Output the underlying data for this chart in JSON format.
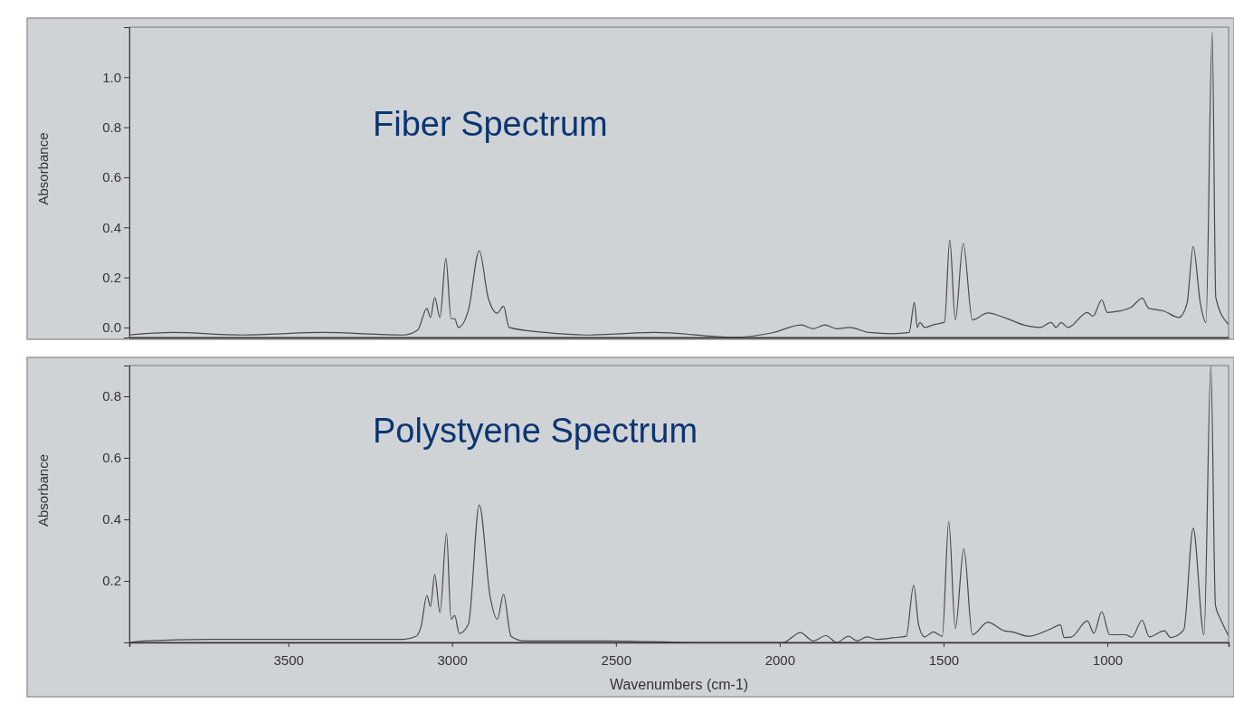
{
  "chart_data": [
    {
      "type": "line",
      "title": "Fiber Spectrum",
      "ylabel": "Absorbance",
      "tick_labels": "y",
      "xlim": [
        3985,
        630
      ],
      "ylim": [
        -0.04,
        1.2
      ],
      "yticks": [
        {
          "value": 0,
          "label": "0.0"
        },
        0.2,
        0.4,
        0.6,
        0.8,
        {
          "value": 1,
          "label": "1.0"
        }
      ],
      "x": [
        3985,
        3851,
        3641,
        3395,
        3149,
        3105,
        3077,
        3066,
        3053,
        3037,
        3019,
        3003,
        2992,
        2981,
        2950,
        2917,
        2890,
        2862,
        2843,
        2826,
        2716,
        2594,
        2503,
        2381,
        2138,
        2019,
        1934,
        1898,
        1862,
        1826,
        1787,
        1727,
        1655,
        1605,
        1589,
        1580,
        1572,
        1558,
        1533,
        1497,
        1481,
        1464,
        1440,
        1412,
        1365,
        1315,
        1255,
        1207,
        1171,
        1157,
        1141,
        1120,
        1061,
        1044,
        1017,
        1000,
        966,
        928,
        893,
        875,
        826,
        782,
        757,
        738,
        716,
        699,
        680,
        669,
        632
      ],
      "series": [
        {
          "color": "#4a4a4a",
          "values": [
            -0.03,
            -0.02,
            -0.03,
            -0.02,
            -0.03,
            -0.01,
            0.076,
            0.04,
            0.12,
            0.04,
            0.277,
            0.035,
            0.035,
            0.0,
            0.07,
            0.307,
            0.12,
            0.057,
            0.085,
            0.0,
            -0.02,
            -0.03,
            -0.026,
            -0.02,
            -0.039,
            -0.02,
            0.01,
            -0.005,
            0.01,
            -0.005,
            0.0,
            -0.02,
            -0.025,
            -0.02,
            0.1,
            0.0,
            0.02,
            0.0,
            0.01,
            0.022,
            0.35,
            0.03,
            0.336,
            0.03,
            0.058,
            0.04,
            0.01,
            0.0,
            0.02,
            0.0,
            0.02,
            0.0,
            0.06,
            0.045,
            0.11,
            0.06,
            0.065,
            0.08,
            0.117,
            0.078,
            0.065,
            0.04,
            0.095,
            0.324,
            0.095,
            0.02,
            1.18,
            0.12,
            0.015
          ]
        }
      ]
    },
    {
      "type": "line",
      "title": "Polystyene Spectrum",
      "ylabel": "Absorbance",
      "xlabel": "Wavenumbers (cm-1)",
      "xlim": [
        3985,
        630
      ],
      "ylim": [
        0,
        0.9
      ],
      "xticks": [
        3500,
        3000,
        2500,
        2000,
        1500,
        1000
      ],
      "yticks": [
        0.2,
        0.4,
        0.6,
        0.8
      ],
      "x": [
        3985,
        3940,
        3740,
        3149,
        3110,
        3094,
        3077,
        3066,
        3053,
        3037,
        3017,
        3003,
        2992,
        2978,
        2950,
        2917,
        2884,
        2862,
        2843,
        2820,
        2779,
        2531,
        2260,
        1989,
        1937,
        1898,
        1859,
        1826,
        1790,
        1763,
        1734,
        1703,
        1655,
        1614,
        1591,
        1576,
        1558,
        1531,
        1504,
        1484,
        1464,
        1438,
        1412,
        1365,
        1315,
        1290,
        1240,
        1171,
        1143,
        1132,
        1111,
        1061,
        1041,
        1017,
        993,
        945,
        925,
        894,
        872,
        826,
        807,
        767,
        738,
        705,
        684,
        670,
        655,
        632
      ],
      "series": [
        {
          "color": "#4a4a4a",
          "values": [
            0,
            0.005,
            0.01,
            0.01,
            0.02,
            0.055,
            0.153,
            0.117,
            0.22,
            0.097,
            0.354,
            0.075,
            0.088,
            0.029,
            0.06,
            0.447,
            0.15,
            0.075,
            0.156,
            0.02,
            0.005,
            0.005,
            0,
            0,
            0.032,
            0.005,
            0.022,
            0,
            0.02,
            0.005,
            0.018,
            0.01,
            0.015,
            0.02,
            0.186,
            0.057,
            0.018,
            0.034,
            0.02,
            0.393,
            0.045,
            0.305,
            0.025,
            0.066,
            0.038,
            0.034,
            0.02,
            0.045,
            0.057,
            0.016,
            0.017,
            0.07,
            0.03,
            0.1,
            0.025,
            0.025,
            0.017,
            0.072,
            0.018,
            0.038,
            0.016,
            0.04,
            0.371,
            0.025,
            0.9,
            0.12,
            0.077,
            0.025
          ]
        }
      ]
    }
  ]
}
